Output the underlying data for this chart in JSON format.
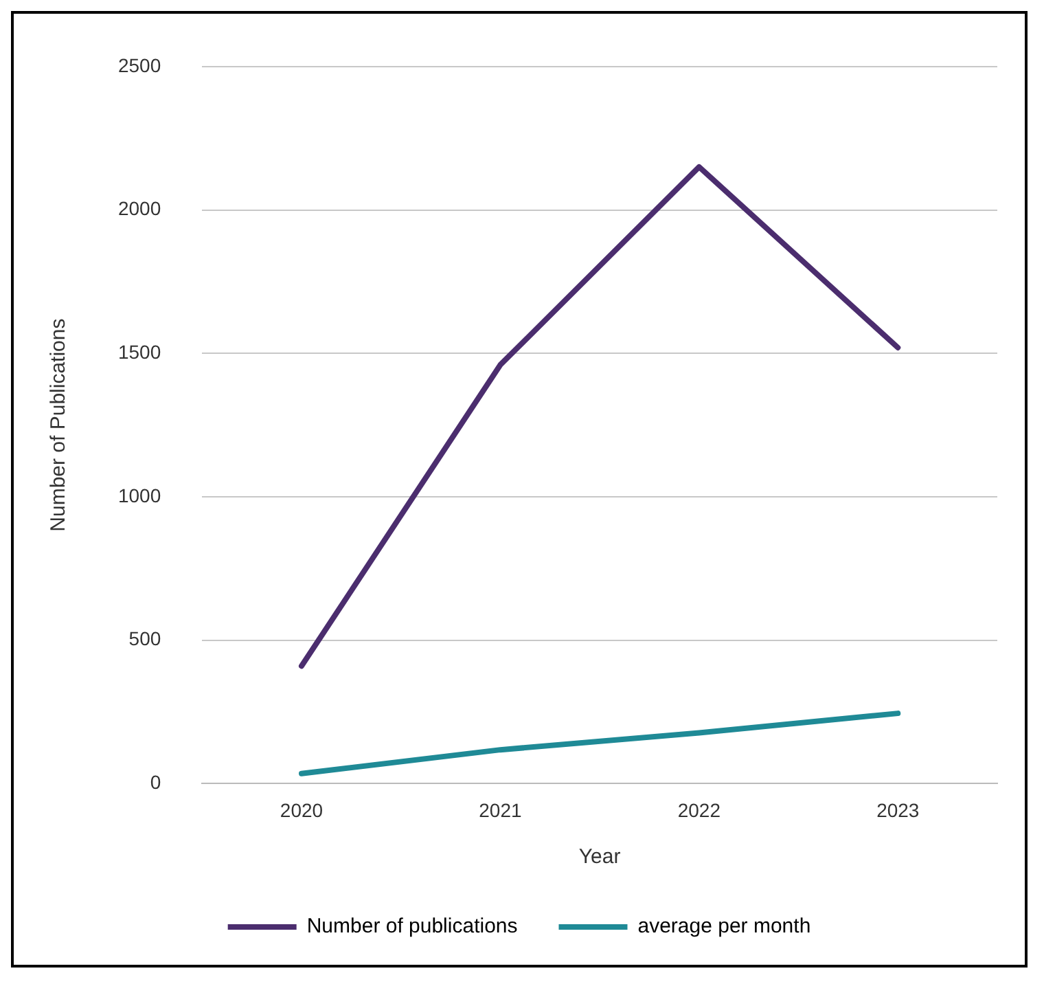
{
  "chart_data": {
    "type": "line",
    "xlabel": "Year",
    "ylabel": "Number of Publications",
    "categories": [
      "2020",
      "2021",
      "2022",
      "2023"
    ],
    "series": [
      {
        "name": "Number of publications",
        "color": "#4b2d6e",
        "values": [
          410,
          1460,
          2150,
          1520
        ]
      },
      {
        "name": "average per month",
        "color": "#1f8a96",
        "values": [
          35,
          118,
          177,
          245
        ]
      }
    ],
    "ylim": [
      0,
      2500
    ],
    "yticks": [
      0,
      500,
      1000,
      1500,
      2000,
      2500
    ],
    "grid": "y",
    "legend": "bottom",
    "marker": "none",
    "line_style": "solid"
  }
}
